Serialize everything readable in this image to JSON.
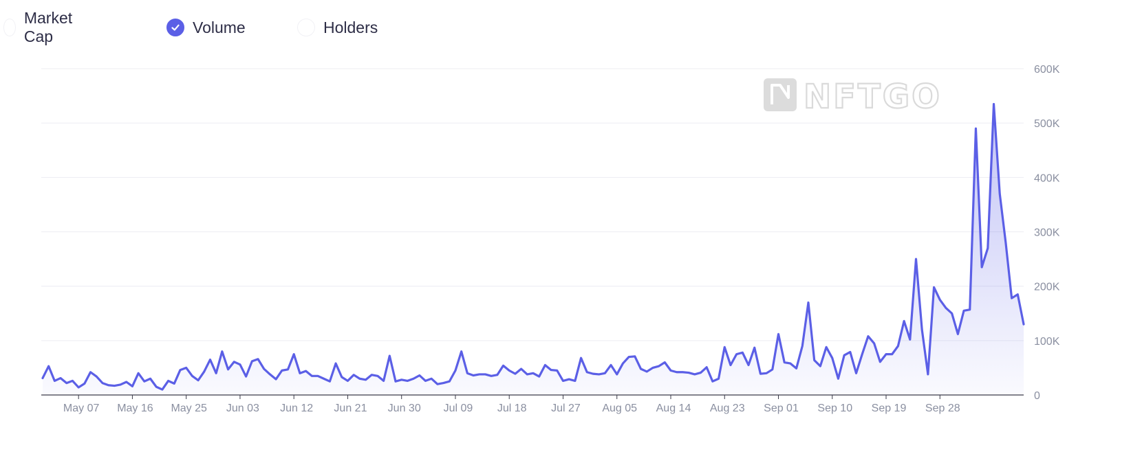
{
  "legend": {
    "items": [
      {
        "label": "Market Cap",
        "checked": false
      },
      {
        "label": "Volume",
        "checked": true
      },
      {
        "label": "Holders",
        "checked": false
      }
    ]
  },
  "watermark": {
    "text": "NFTGO"
  },
  "colors": {
    "line": "#5b5fe6",
    "grid": "#ececf2",
    "tick": "#8a8fa0"
  },
  "chart_data": {
    "type": "area",
    "title": "",
    "xlabel": "",
    "ylabel": "",
    "ylim": [
      0,
      600000
    ],
    "y_ticks": [
      {
        "value": 0,
        "label": "0"
      },
      {
        "value": 100000,
        "label": "100K"
      },
      {
        "value": 200000,
        "label": "200K"
      },
      {
        "value": 300000,
        "label": "300K"
      },
      {
        "value": 400000,
        "label": "400K"
      },
      {
        "value": 500000,
        "label": "500K"
      },
      {
        "value": 600000,
        "label": "600K"
      }
    ],
    "x_ticks": [
      {
        "index": 6,
        "label": "May 07"
      },
      {
        "index": 15,
        "label": "May 16"
      },
      {
        "index": 24,
        "label": "May 25"
      },
      {
        "index": 33,
        "label": "Jun 03"
      },
      {
        "index": 42,
        "label": "Jun 12"
      },
      {
        "index": 51,
        "label": "Jun 21"
      },
      {
        "index": 60,
        "label": "Jun 30"
      },
      {
        "index": 69,
        "label": "Jul 09"
      },
      {
        "index": 78,
        "label": "Jul 18"
      },
      {
        "index": 87,
        "label": "Jul 27"
      },
      {
        "index": 96,
        "label": "Aug 05"
      },
      {
        "index": 105,
        "label": "Aug 14"
      },
      {
        "index": 114,
        "label": "Aug 23"
      },
      {
        "index": 123,
        "label": "Sep 01"
      },
      {
        "index": 132,
        "label": "Sep 10"
      },
      {
        "index": 141,
        "label": "Sep 19"
      },
      {
        "index": 150,
        "label": "Sep 28"
      }
    ],
    "grid": true,
    "series": [
      {
        "name": "Volume",
        "values": [
          31000,
          53000,
          26000,
          31000,
          22000,
          26000,
          14000,
          21000,
          42000,
          34000,
          22000,
          18000,
          17000,
          19000,
          24000,
          16000,
          40000,
          25000,
          30000,
          15000,
          10000,
          26000,
          21000,
          46000,
          50000,
          35000,
          27000,
          43000,
          65000,
          40000,
          80000,
          47000,
          61000,
          56000,
          34000,
          62000,
          66000,
          48000,
          38000,
          29000,
          45000,
          47000,
          75000,
          40000,
          44000,
          35000,
          35000,
          30000,
          25000,
          58000,
          33000,
          26000,
          37000,
          30000,
          28000,
          37000,
          35000,
          26000,
          72000,
          25000,
          28000,
          26000,
          30000,
          36000,
          26000,
          30000,
          20000,
          22000,
          25000,
          45000,
          80000,
          40000,
          36000,
          38000,
          38000,
          35000,
          37000,
          54000,
          45000,
          39000,
          48000,
          38000,
          40000,
          34000,
          55000,
          46000,
          45000,
          26000,
          29000,
          26000,
          68000,
          42000,
          39000,
          38000,
          40000,
          55000,
          38000,
          58000,
          70000,
          71000,
          48000,
          43000,
          50000,
          53000,
          60000,
          45000,
          42000,
          42000,
          41000,
          38000,
          41000,
          51000,
          25000,
          30000,
          88000,
          55000,
          75000,
          78000,
          55000,
          87000,
          39000,
          40000,
          47000,
          112000,
          60000,
          58000,
          49000,
          90000,
          170000,
          64000,
          53000,
          88000,
          68000,
          30000,
          73000,
          79000,
          40000,
          75000,
          108000,
          95000,
          61000,
          75000,
          75000,
          90000,
          136000,
          102000,
          250000,
          120000,
          38000,
          198000,
          175000,
          160000,
          150000,
          112000,
          155000,
          157000,
          490000,
          235000,
          270000,
          535000,
          370000,
          280000,
          178000,
          185000,
          130000
        ]
      }
    ]
  }
}
